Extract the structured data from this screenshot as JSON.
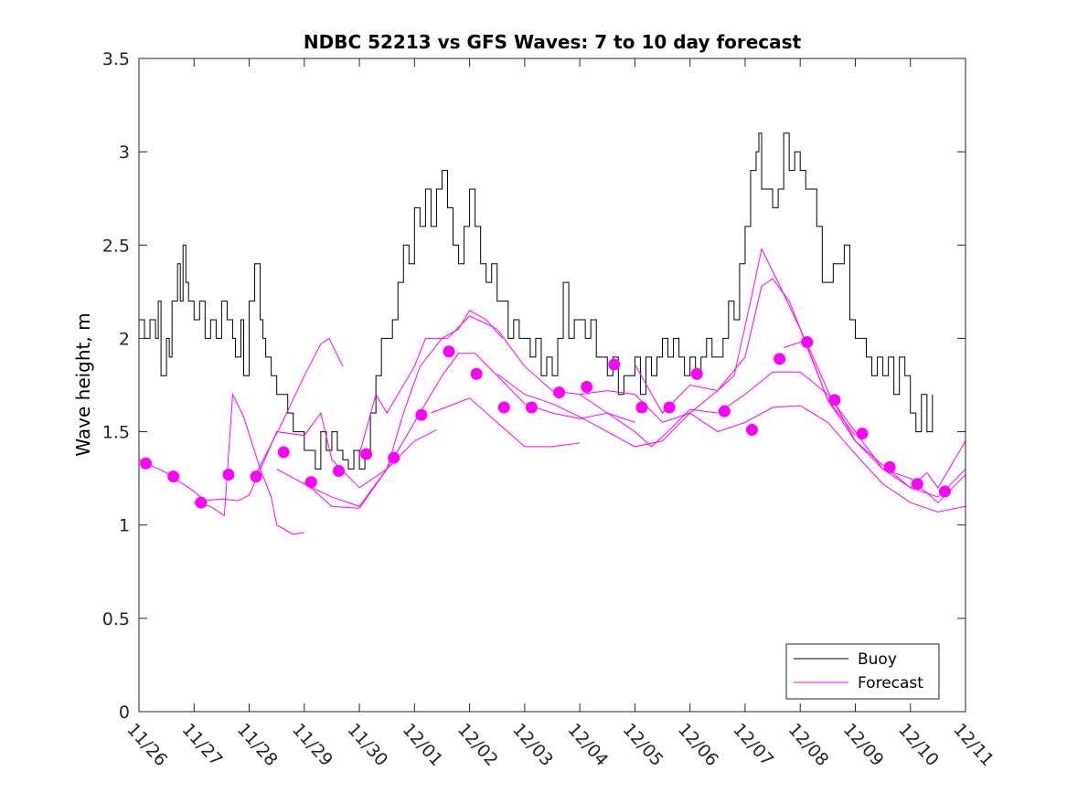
{
  "chart_data": {
    "type": "line",
    "title": "NDBC 52213 vs GFS Waves: 7 to 10 day forecast",
    "xlabel": "",
    "ylabel": "Wave height, m",
    "xlim_days": [
      0,
      15
    ],
    "ylim": [
      0,
      3.5
    ],
    "x_tick_labels": [
      "11/26",
      "11/27",
      "11/28",
      "11/29",
      "11/30",
      "12/01",
      "12/02",
      "12/03",
      "12/04",
      "12/05",
      "12/06",
      "12/07",
      "12/08",
      "12/09",
      "12/10",
      "12/11"
    ],
    "y_ticks": [
      0,
      0.5,
      1,
      1.5,
      2,
      2.5,
      3,
      3.5
    ],
    "y_tick_labels": [
      "0",
      "0.5",
      "1",
      "1.5",
      "2",
      "2.5",
      "3",
      "3.5"
    ],
    "grid": false,
    "legend_position": "bottom-right",
    "legend": [
      "Buoy",
      "Forecast"
    ],
    "colors": {
      "buoy": "#000000",
      "forecast": "#ff00ff"
    },
    "buoy": [
      [
        0,
        2.1
      ],
      [
        0.1,
        2.0
      ],
      [
        0.2,
        2.1
      ],
      [
        0.3,
        2.0
      ],
      [
        0.35,
        2.2
      ],
      [
        0.4,
        1.8
      ],
      [
        0.5,
        2.0
      ],
      [
        0.55,
        1.9
      ],
      [
        0.6,
        2.2
      ],
      [
        0.7,
        2.4
      ],
      [
        0.75,
        2.2
      ],
      [
        0.8,
        2.5
      ],
      [
        0.85,
        2.3
      ],
      [
        0.9,
        2.2
      ],
      [
        1.0,
        2.1
      ],
      [
        1.1,
        2.2
      ],
      [
        1.2,
        2.0
      ],
      [
        1.3,
        2.1
      ],
      [
        1.4,
        2.0
      ],
      [
        1.5,
        2.2
      ],
      [
        1.6,
        2.1
      ],
      [
        1.7,
        2.0
      ],
      [
        1.75,
        1.9
      ],
      [
        1.85,
        2.1
      ],
      [
        1.9,
        1.8
      ],
      [
        2.0,
        2.2
      ],
      [
        2.1,
        2.4
      ],
      [
        2.2,
        2.1
      ],
      [
        2.25,
        2.0
      ],
      [
        2.3,
        1.9
      ],
      [
        2.4,
        1.8
      ],
      [
        2.5,
        1.7
      ],
      [
        2.6,
        1.7
      ],
      [
        2.7,
        1.6
      ],
      [
        2.8,
        1.5
      ],
      [
        2.9,
        1.5
      ],
      [
        3.0,
        1.4
      ],
      [
        3.1,
        1.4
      ],
      [
        3.2,
        1.3
      ],
      [
        3.3,
        1.5
      ],
      [
        3.4,
        1.4
      ],
      [
        3.5,
        1.5
      ],
      [
        3.6,
        1.4
      ],
      [
        3.7,
        1.35
      ],
      [
        3.8,
        1.3
      ],
      [
        3.9,
        1.4
      ],
      [
        4.0,
        1.3
      ],
      [
        4.1,
        1.4
      ],
      [
        4.2,
        1.6
      ],
      [
        4.3,
        1.8
      ],
      [
        4.4,
        2.0
      ],
      [
        4.5,
        2.0
      ],
      [
        4.6,
        2.1
      ],
      [
        4.7,
        2.3
      ],
      [
        4.8,
        2.5
      ],
      [
        4.9,
        2.4
      ],
      [
        5.0,
        2.7
      ],
      [
        5.1,
        2.6
      ],
      [
        5.2,
        2.8
      ],
      [
        5.3,
        2.6
      ],
      [
        5.4,
        2.8
      ],
      [
        5.5,
        2.9
      ],
      [
        5.6,
        2.7
      ],
      [
        5.7,
        2.5
      ],
      [
        5.8,
        2.4
      ],
      [
        5.9,
        2.6
      ],
      [
        6.0,
        2.8
      ],
      [
        6.1,
        2.6
      ],
      [
        6.2,
        2.4
      ],
      [
        6.3,
        2.3
      ],
      [
        6.4,
        2.4
      ],
      [
        6.5,
        2.2
      ],
      [
        6.6,
        2.2
      ],
      [
        6.7,
        2.0
      ],
      [
        6.8,
        2.1
      ],
      [
        6.9,
        2.0
      ],
      [
        7.0,
        2.0
      ],
      [
        7.1,
        1.9
      ],
      [
        7.2,
        2.0
      ],
      [
        7.3,
        1.8
      ],
      [
        7.4,
        1.9
      ],
      [
        7.5,
        1.8
      ],
      [
        7.6,
        2.0
      ],
      [
        7.7,
        2.3
      ],
      [
        7.8,
        2.0
      ],
      [
        7.9,
        2.1
      ],
      [
        8.0,
        2.1
      ],
      [
        8.1,
        2.0
      ],
      [
        8.2,
        2.1
      ],
      [
        8.3,
        1.9
      ],
      [
        8.4,
        1.9
      ],
      [
        8.5,
        1.8
      ],
      [
        8.6,
        1.9
      ],
      [
        8.7,
        1.7
      ],
      [
        8.8,
        1.8
      ],
      [
        8.9,
        1.8
      ],
      [
        9.0,
        1.9
      ],
      [
        9.1,
        1.7
      ],
      [
        9.2,
        1.9
      ],
      [
        9.3,
        1.8
      ],
      [
        9.4,
        1.9
      ],
      [
        9.5,
        2.0
      ],
      [
        9.6,
        1.9
      ],
      [
        9.7,
        2.0
      ],
      [
        9.8,
        1.9
      ],
      [
        9.9,
        1.8
      ],
      [
        10.0,
        1.9
      ],
      [
        10.1,
        1.8
      ],
      [
        10.2,
        1.9
      ],
      [
        10.3,
        2.0
      ],
      [
        10.4,
        1.9
      ],
      [
        10.5,
        1.9
      ],
      [
        10.6,
        2.0
      ],
      [
        10.7,
        2.2
      ],
      [
        10.8,
        2.1
      ],
      [
        10.9,
        2.4
      ],
      [
        11.0,
        2.6
      ],
      [
        11.1,
        2.9
      ],
      [
        11.2,
        3.0
      ],
      [
        11.25,
        3.1
      ],
      [
        11.3,
        2.8
      ],
      [
        11.4,
        2.8
      ],
      [
        11.5,
        2.7
      ],
      [
        11.6,
        2.8
      ],
      [
        11.7,
        3.1
      ],
      [
        11.8,
        2.9
      ],
      [
        11.9,
        3.0
      ],
      [
        12.0,
        2.9
      ],
      [
        12.1,
        2.8
      ],
      [
        12.2,
        2.8
      ],
      [
        12.3,
        2.6
      ],
      [
        12.4,
        2.3
      ],
      [
        12.5,
        2.3
      ],
      [
        12.6,
        2.4
      ],
      [
        12.7,
        2.4
      ],
      [
        12.8,
        2.5
      ],
      [
        12.9,
        2.1
      ],
      [
        13.0,
        2.0
      ],
      [
        13.1,
        2.0
      ],
      [
        13.2,
        1.9
      ],
      [
        13.3,
        1.8
      ],
      [
        13.4,
        1.9
      ],
      [
        13.5,
        1.8
      ],
      [
        13.6,
        1.9
      ],
      [
        13.7,
        1.7
      ],
      [
        13.8,
        1.9
      ],
      [
        13.9,
        1.8
      ],
      [
        14.0,
        1.6
      ],
      [
        14.1,
        1.5
      ],
      [
        14.2,
        1.7
      ],
      [
        14.3,
        1.5
      ],
      [
        14.4,
        1.7
      ]
    ],
    "forecast_points": [
      [
        0.125,
        1.33
      ],
      [
        0.625,
        1.26
      ],
      [
        1.125,
        1.12
      ],
      [
        1.625,
        1.27
      ],
      [
        2.125,
        1.26
      ],
      [
        2.625,
        1.39
      ],
      [
        3.125,
        1.23
      ],
      [
        3.625,
        1.29
      ],
      [
        4.125,
        1.38
      ],
      [
        4.625,
        1.36
      ],
      [
        5.125,
        1.59
      ],
      [
        5.625,
        1.93
      ],
      [
        6.125,
        1.81
      ],
      [
        6.625,
        1.63
      ],
      [
        7.125,
        1.63
      ],
      [
        7.625,
        1.71
      ],
      [
        8.125,
        1.74
      ],
      [
        8.625,
        1.86
      ],
      [
        9.125,
        1.63
      ],
      [
        9.625,
        1.63
      ],
      [
        10.125,
        1.81
      ],
      [
        10.625,
        1.61
      ],
      [
        11.125,
        1.51
      ],
      [
        11.625,
        1.89
      ],
      [
        12.125,
        1.98
      ],
      [
        12.625,
        1.67
      ],
      [
        13.125,
        1.49
      ],
      [
        13.625,
        1.31
      ],
      [
        14.125,
        1.22
      ],
      [
        14.625,
        1.18
      ]
    ],
    "forecast_runs": [
      [
        [
          0,
          1.35
        ],
        [
          0.5,
          1.28
        ],
        [
          1,
          1.18
        ],
        [
          1.2,
          1.13
        ],
        [
          1.5,
          1.14
        ],
        [
          1.8,
          1.13
        ],
        [
          2.0,
          1.16
        ],
        [
          2.5,
          1.5
        ],
        [
          3.0,
          1.48
        ],
        [
          3.3,
          1.6
        ],
        [
          3.5,
          1.35
        ],
        [
          4,
          1.2
        ],
        [
          4.5,
          1.3
        ],
        [
          5,
          1.45
        ],
        [
          5.4,
          1.51
        ]
      ],
      [
        [
          1.0,
          1.12
        ],
        [
          1.3,
          1.1
        ],
        [
          1.55,
          1.05
        ],
        [
          1.7,
          1.7
        ],
        [
          1.9,
          1.58
        ],
        [
          2.2,
          1.3
        ],
        [
          2.4,
          1.15
        ],
        [
          2.5,
          1.0
        ],
        [
          2.8,
          0.95
        ],
        [
          3.0,
          0.96
        ]
      ],
      [
        [
          2.1,
          1.26
        ],
        [
          2.6,
          1.55
        ],
        [
          3.0,
          1.8
        ],
        [
          3.3,
          1.97
        ],
        [
          3.45,
          2.0
        ],
        [
          3.7,
          1.85
        ]
      ],
      [
        [
          2.5,
          1.3
        ],
        [
          3.0,
          1.22
        ],
        [
          3.5,
          1.15
        ],
        [
          4,
          1.1
        ],
        [
          4.5,
          1.3
        ],
        [
          4.8,
          1.6
        ],
        [
          5.1,
          1.85
        ],
        [
          5.5,
          2.0
        ],
        [
          5.8,
          2.05
        ],
        [
          6.0,
          2.15
        ],
        [
          6.3,
          2.1
        ],
        [
          6.6,
          2.0
        ]
      ],
      [
        [
          3,
          1.23
        ],
        [
          3.5,
          1.1
        ],
        [
          4,
          1.09
        ],
        [
          4.5,
          1.3
        ],
        [
          5,
          1.55
        ],
        [
          5.5,
          1.8
        ],
        [
          5.8,
          1.92
        ],
        [
          6.1,
          1.92
        ],
        [
          6.5,
          1.8
        ],
        [
          7,
          1.65
        ],
        [
          7.5,
          1.6
        ],
        [
          8,
          1.57
        ],
        [
          8.5,
          1.6
        ],
        [
          9,
          1.55
        ]
      ],
      [
        [
          4,
          1.38
        ],
        [
          4.3,
          1.7
        ],
        [
          4.5,
          1.6
        ],
        [
          5,
          1.85
        ],
        [
          5.2,
          2.0
        ],
        [
          5.6,
          2.0
        ],
        [
          6,
          2.12
        ],
        [
          6.5,
          2.05
        ],
        [
          7,
          1.85
        ],
        [
          7.5,
          1.72
        ],
        [
          8,
          1.7
        ],
        [
          8.5,
          1.72
        ],
        [
          9,
          1.7
        ],
        [
          9.5,
          1.55
        ],
        [
          10,
          1.6
        ],
        [
          10.5,
          1.72
        ],
        [
          10.8,
          1.8
        ],
        [
          11.1,
          2.2
        ],
        [
          11.3,
          2.48
        ],
        [
          11.6,
          2.3
        ],
        [
          12,
          2.05
        ],
        [
          12.5,
          1.67
        ],
        [
          13,
          1.48
        ]
      ],
      [
        [
          5.3,
          1.6
        ],
        [
          6,
          1.68
        ],
        [
          6.5,
          1.55
        ],
        [
          7,
          1.42
        ],
        [
          7.5,
          1.42
        ],
        [
          8,
          1.44
        ]
      ],
      [
        [
          6.5,
          1.81
        ],
        [
          7,
          1.7
        ],
        [
          7.5,
          1.65
        ],
        [
          8,
          1.58
        ],
        [
          8.5,
          1.5
        ],
        [
          9,
          1.42
        ],
        [
          9.5,
          1.45
        ],
        [
          10,
          1.6
        ],
        [
          10.5,
          1.5
        ],
        [
          11,
          1.55
        ],
        [
          11.5,
          1.63
        ],
        [
          12,
          1.64
        ],
        [
          12.5,
          1.55
        ],
        [
          13,
          1.38
        ],
        [
          13.5,
          1.22
        ],
        [
          14,
          1.12
        ],
        [
          14.5,
          1.07
        ],
        [
          15,
          1.1
        ]
      ],
      [
        [
          8,
          1.7
        ],
        [
          8.5,
          1.6
        ],
        [
          9,
          1.5
        ],
        [
          9.3,
          1.42
        ],
        [
          9.6,
          1.5
        ],
        [
          10,
          1.62
        ],
        [
          10.5,
          1.6
        ],
        [
          11,
          1.7
        ],
        [
          11.5,
          1.82
        ],
        [
          12,
          1.82
        ],
        [
          12.5,
          1.7
        ],
        [
          13,
          1.5
        ],
        [
          13.5,
          1.3
        ],
        [
          14,
          1.2
        ],
        [
          14.5,
          1.15
        ],
        [
          15,
          1.3
        ]
      ],
      [
        [
          9,
          1.86
        ],
        [
          9.5,
          1.6
        ],
        [
          10,
          1.75
        ],
        [
          10.5,
          1.72
        ],
        [
          11,
          1.9
        ],
        [
          11.3,
          2.28
        ],
        [
          11.5,
          2.32
        ],
        [
          11.8,
          2.2
        ],
        [
          12.1,
          1.98
        ],
        [
          12.5,
          1.67
        ],
        [
          13,
          1.45
        ],
        [
          13.5,
          1.3
        ],
        [
          14,
          1.25
        ],
        [
          14.5,
          1.12
        ],
        [
          15,
          1.27
        ]
      ],
      [
        [
          11.7,
          1.95
        ],
        [
          12.1,
          1.99
        ],
        [
          12.5,
          1.72
        ],
        [
          13,
          1.45
        ],
        [
          13.5,
          1.32
        ],
        [
          14,
          1.2
        ],
        [
          14.3,
          1.28
        ],
        [
          14.5,
          1.2
        ],
        [
          15,
          1.45
        ]
      ]
    ]
  }
}
